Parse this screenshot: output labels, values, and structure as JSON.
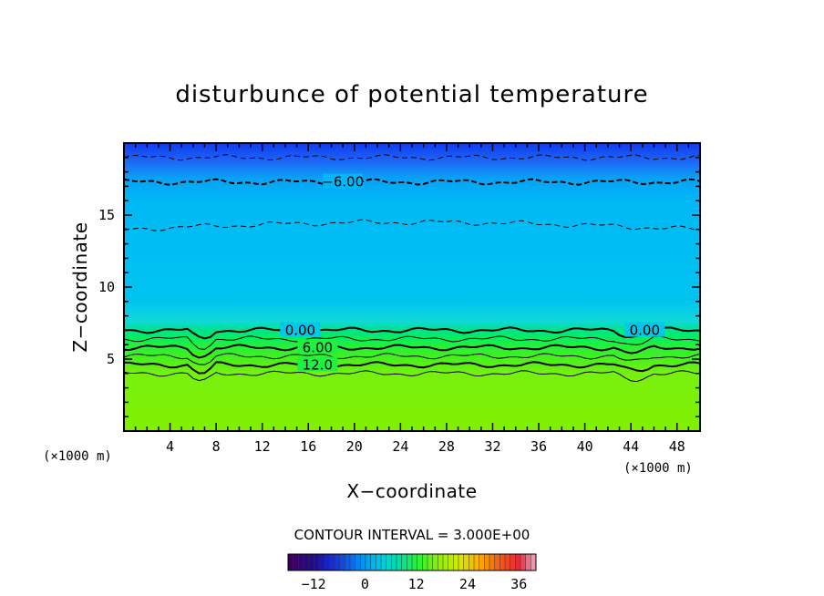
{
  "chart_data": {
    "type": "heatmap",
    "title": "disturbunce of potential temperature",
    "xlabel": "X−coordinate",
    "ylabel": "Z−coordinate",
    "x_unit": "(×1000 m)",
    "y_unit": "(×1000 m)",
    "xlim": [
      0,
      50
    ],
    "ylim": [
      0,
      20
    ],
    "x_ticks": [
      4,
      8,
      12,
      16,
      20,
      24,
      28,
      32,
      36,
      40,
      44,
      48
    ],
    "y_ticks": [
      5,
      10,
      15
    ],
    "contour_interval_text": "CONTOUR INTERVAL = 3.000E+00",
    "contour_labels": [
      {
        "text": "−6.00",
        "x": 19,
        "z": 17.3
      },
      {
        "text": "0.00",
        "x": 15.3,
        "z": 7.0
      },
      {
        "text": "0.00",
        "x": 45.2,
        "z": 7.0
      },
      {
        "text": "6.00",
        "x": 16.8,
        "z": 5.8
      },
      {
        "text": "12.0",
        "x": 16.8,
        "z": 4.6
      }
    ],
    "profile": [
      {
        "z": 0,
        "value": 24
      },
      {
        "z": 4,
        "value": 22
      },
      {
        "z": 4.6,
        "value": 12
      },
      {
        "z": 5.2,
        "value": 9
      },
      {
        "z": 5.8,
        "value": 6
      },
      {
        "z": 6.4,
        "value": 3
      },
      {
        "z": 7.0,
        "value": 0
      },
      {
        "z": 9.0,
        "value": -2
      },
      {
        "z": 14.0,
        "value": -3
      },
      {
        "z": 17.3,
        "value": -6
      },
      {
        "z": 19.0,
        "value": -9
      },
      {
        "z": 20.0,
        "value": -12
      }
    ],
    "colorbar": {
      "min": -18,
      "max": 40,
      "tick_labels": [
        "−12",
        "0",
        "12",
        "24",
        "36"
      ],
      "tick_values": [
        -12,
        0,
        12,
        24,
        36
      ]
    },
    "legend_position": "bottom"
  }
}
